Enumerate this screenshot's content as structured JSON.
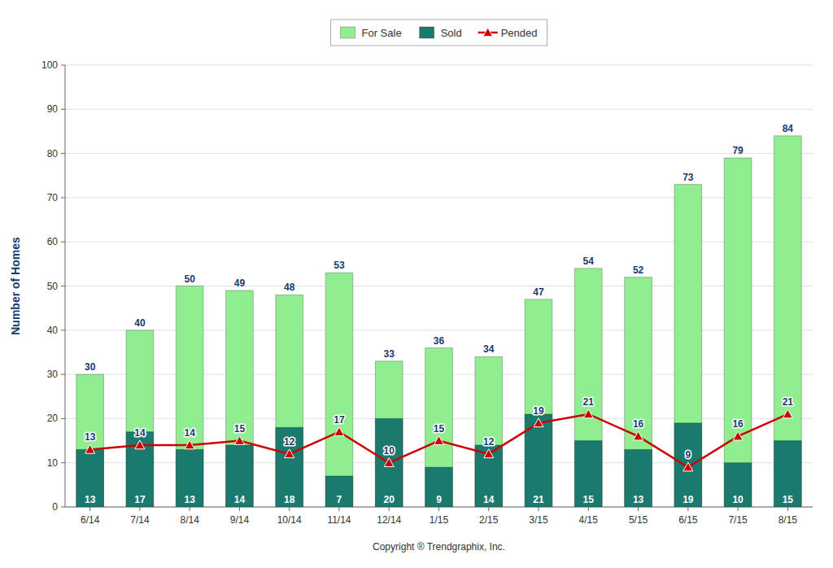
{
  "chart_data": {
    "type": "bar",
    "xlabel": "Copyright ® Trendgraphix, Inc.",
    "ylabel": "Number of Homes",
    "categories": [
      "6/14",
      "7/14",
      "8/14",
      "9/14",
      "10/14",
      "11/14",
      "12/14",
      "1/15",
      "2/15",
      "3/15",
      "4/15",
      "5/15",
      "6/15",
      "7/15",
      "8/15"
    ],
    "series": [
      {
        "name": "For Sale",
        "color": "#90ee90",
        "values": [
          30,
          40,
          50,
          49,
          48,
          53,
          33,
          36,
          34,
          47,
          54,
          52,
          73,
          79,
          84
        ]
      },
      {
        "name": "Sold",
        "color": "#1a7a6e",
        "values": [
          13,
          17,
          13,
          14,
          18,
          7,
          20,
          9,
          14,
          21,
          15,
          13,
          19,
          10,
          15
        ]
      },
      {
        "name": "Pended",
        "type": "line",
        "color": "#cc0000",
        "marker": "triangle",
        "values": [
          13,
          14,
          14,
          15,
          12,
          17,
          10,
          15,
          12,
          19,
          21,
          16,
          9,
          16,
          21
        ]
      }
    ],
    "ylim": [
      0,
      100
    ],
    "yticks": [
      0,
      10,
      20,
      30,
      40,
      50,
      60,
      70,
      80,
      90,
      100
    ],
    "stacked": false,
    "grid": true,
    "legend": "top",
    "data_labels": true
  }
}
